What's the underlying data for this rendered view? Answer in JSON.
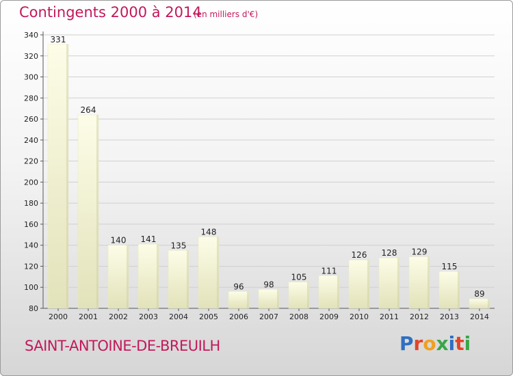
{
  "header": {
    "title": "Contingents 2000 à 2014",
    "subtitle": "(en milliers d'€)"
  },
  "footer": {
    "location": "SAINT-ANTOINE-DE-BREUILH",
    "brand": "Proxiti",
    "brand_colors": [
      "#2f6fc0",
      "#e0442b",
      "#f0a020",
      "#3aa54a",
      "#2f6fc0",
      "#e0442b",
      "#3aa54a"
    ]
  },
  "chart_data": {
    "type": "bar",
    "categories": [
      "2000",
      "2001",
      "2002",
      "2003",
      "2004",
      "2005",
      "2006",
      "2007",
      "2008",
      "2009",
      "2010",
      "2011",
      "2012",
      "2013",
      "2014"
    ],
    "values": [
      331,
      264,
      140,
      141,
      135,
      148,
      96,
      98,
      105,
      111,
      126,
      128,
      129,
      115,
      89
    ],
    "ylim": [
      80,
      340
    ],
    "yticks": [
      80,
      100,
      120,
      140,
      160,
      180,
      200,
      220,
      240,
      260,
      280,
      300,
      320,
      340
    ],
    "grid": true,
    "bar_color_top": "#fdfde8",
    "bar_color_bottom": "#e2e2ba",
    "accent_color": "#c2185b"
  }
}
